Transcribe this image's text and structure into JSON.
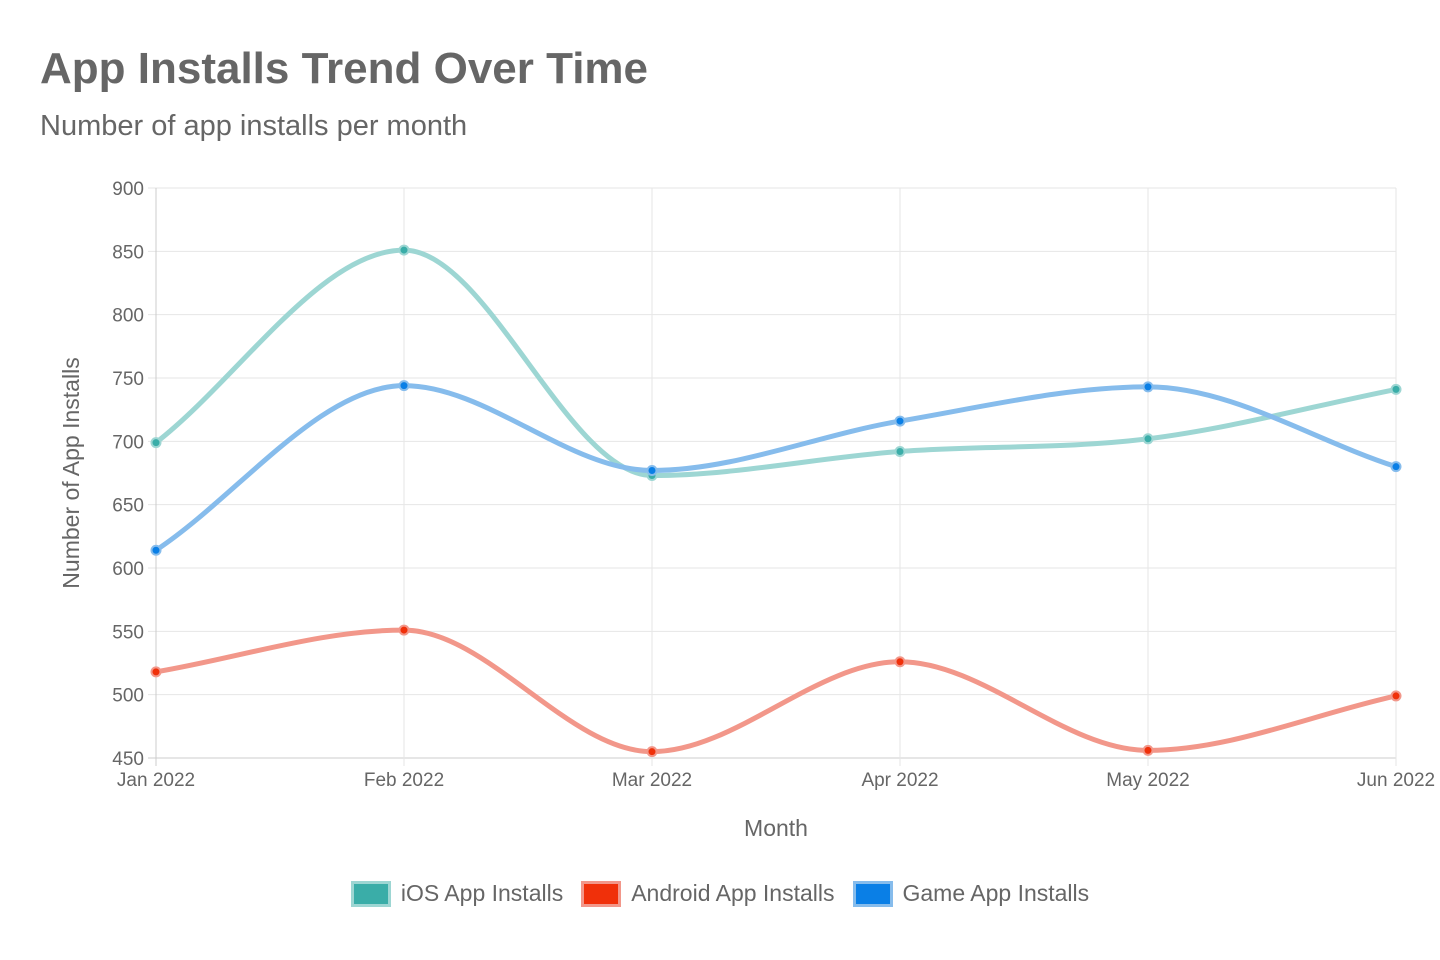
{
  "chart_data": {
    "type": "line",
    "title": "App Installs Trend Over Time",
    "subtitle": "Number of app installs per month",
    "xlabel": "Month",
    "ylabel": "Number of App Installs",
    "categories": [
      "Jan 2022",
      "Feb 2022",
      "Mar 2022",
      "Apr 2022",
      "May 2022",
      "Jun 2022"
    ],
    "ylim": [
      450,
      900
    ],
    "yticks": [
      450,
      500,
      550,
      600,
      650,
      700,
      750,
      800,
      850,
      900
    ],
    "grid": true,
    "legend_position": "bottom",
    "series": [
      {
        "name": "iOS App Installs",
        "values": [
          699,
          851,
          673,
          692,
          702,
          741
        ],
        "color": "#3aada8",
        "line_color": "#9dd6d3"
      },
      {
        "name": "Android App Installs",
        "values": [
          518,
          551,
          455,
          526,
          456,
          499
        ],
        "color": "#f0300a",
        "line_color": "#f2978a"
      },
      {
        "name": "Game App Installs",
        "values": [
          614,
          744,
          677,
          716,
          743,
          680
        ],
        "color": "#0a7fe6",
        "line_color": "#86bcec"
      }
    ]
  }
}
